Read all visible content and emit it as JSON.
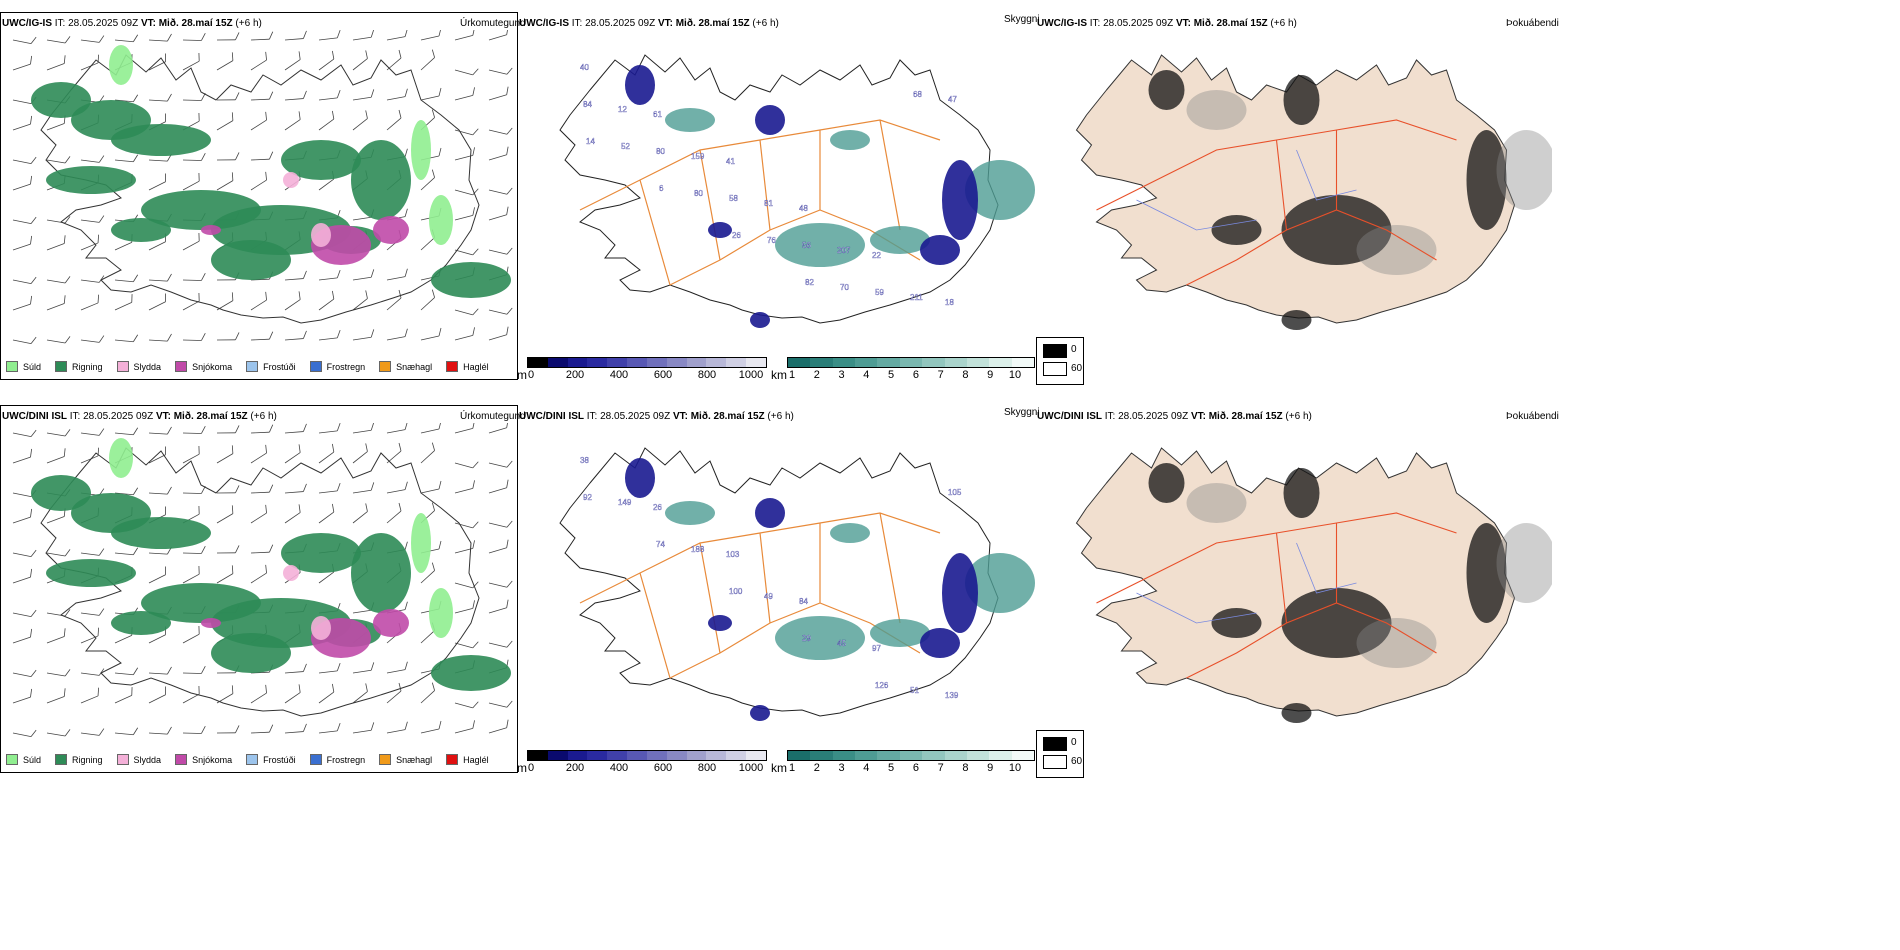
{
  "rows": [
    {
      "precip": {
        "model": "UWC/IG-IS",
        "rest": " IT: 28.05.2025 09Z ",
        "vt_label": "VT:",
        "vt": " Mið. 28.maí 15Z",
        "lead": " (+6 h)",
        "title": "Úrkomutegund"
      },
      "ceiling": {
        "model": "UWC/IG-IS",
        "rest": " IT: 28.05.2025 09Z ",
        "vt_label": "VT:",
        "vt": " Mið. 28.maí 15Z",
        "lead": " (+6 h)",
        "title": "Skyggni"
      },
      "fog": {
        "model": "UWC/IG-IS",
        "rest": " IT: 28.05.2025 09Z ",
        "vt_label": "VT:",
        "vt": " Mið. 28.maí 15Z",
        "lead": " (+6 h)",
        "title": "Þokuábendi"
      },
      "ceiling_labels": [
        "40",
        "61",
        "41",
        "48",
        "22",
        "18",
        "12",
        "159",
        "81",
        "207",
        "211",
        "84",
        "80",
        "58",
        "56",
        "59",
        "47",
        "52",
        "80",
        "76",
        "70",
        "68",
        "14",
        "6",
        "26",
        "82"
      ]
    },
    {
      "precip": {
        "model": "UWC/DINI ISL",
        "rest": " IT: 28.05.2025 09Z ",
        "vt_label": "VT:",
        "vt": " Mið. 28.maí 15Z",
        "lead": " (+6 h)",
        "title": "Úrkomutegund"
      },
      "ceiling": {
        "model": "UWC/DINI ISL",
        "rest": " IT: 28.05.2025 09Z ",
        "vt_label": "VT:",
        "vt": " Mið. 28.maí 15Z",
        "lead": " (+6 h)",
        "title": "Skyggni"
      },
      "fog": {
        "model": "UWC/DINI ISL",
        "rest": " IT: 28.05.2025 09Z ",
        "vt_label": "VT:",
        "vt": " Mið. 28.maí 15Z",
        "lead": " (+6 h)",
        "title": "Þokuábendi"
      },
      "ceiling_labels": [
        "38",
        "26",
        "103",
        "84",
        "97",
        "139",
        "149",
        "188",
        "49",
        "45",
        "51",
        "92",
        "74",
        "100",
        "29",
        "126",
        "105"
      ]
    }
  ],
  "precip_legend": [
    {
      "label": "Súld",
      "color": "#90ee90"
    },
    {
      "label": "Rigning",
      "color": "#2e8b57"
    },
    {
      "label": "Slydda",
      "color": "#f4b0d8"
    },
    {
      "label": "Snjókoma",
      "color": "#c04aa8"
    },
    {
      "label": "Frostúði",
      "color": "#9cc4ec"
    },
    {
      "label": "Frostregn",
      "color": "#3a6fd0"
    },
    {
      "label": "Snæhagl",
      "color": "#f09a1a"
    },
    {
      "label": "Haglél",
      "color": "#e01010"
    }
  ],
  "ceiling_bar": {
    "unit": "m",
    "ticks": [
      "0",
      "200",
      "400",
      "600",
      "800",
      "1000"
    ],
    "colors": [
      "#000000",
      "#0a0a6e",
      "#1a1a90",
      "#2a2aa0",
      "#4040aa",
      "#5858b4",
      "#7070bc",
      "#8888c4",
      "#a0a0cc",
      "#b8b8d8",
      "#d0d0e4",
      "#e8e8f0"
    ]
  },
  "vis_bar": {
    "unit": "km",
    "ticks": [
      "1",
      "2",
      "3",
      "4",
      "5",
      "6",
      "7",
      "8",
      "9",
      "10"
    ],
    "colors": [
      "#1a6e6a",
      "#2a7e78",
      "#3a8e86",
      "#4e9c94",
      "#64aaa2",
      "#7ab8b0",
      "#92c6be",
      "#aad4cc",
      "#c2e2da",
      "#dcf0ea",
      "#f2faf8"
    ]
  },
  "fog_legend": {
    "high": "0",
    "low": "60"
  }
}
